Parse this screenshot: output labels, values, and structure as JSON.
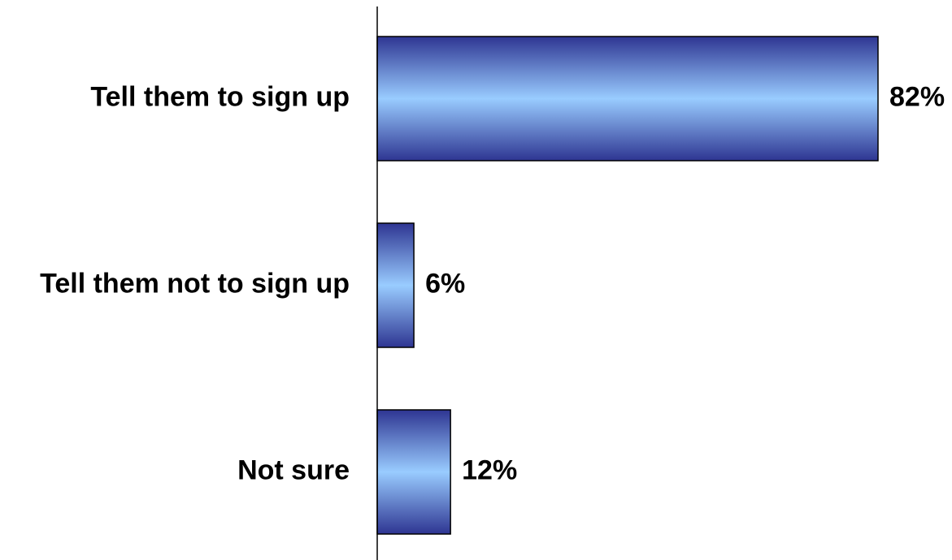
{
  "chart_data": {
    "type": "bar",
    "orientation": "horizontal",
    "categories": [
      "Tell them to sign up",
      "Tell them not to sign up",
      "Not sure"
    ],
    "values": [
      82,
      6,
      12
    ],
    "data_labels": [
      "82%",
      "6%",
      "12%"
    ],
    "title": "",
    "xlabel": "",
    "ylabel": "",
    "xlim": [
      0,
      82
    ],
    "grid": false,
    "legend": "none"
  },
  "colors": {
    "bar_edge": "#2e3592",
    "bar_center": "#99ccff",
    "bar_outline": "#000000",
    "axis": "#000000",
    "text": "#000000"
  }
}
